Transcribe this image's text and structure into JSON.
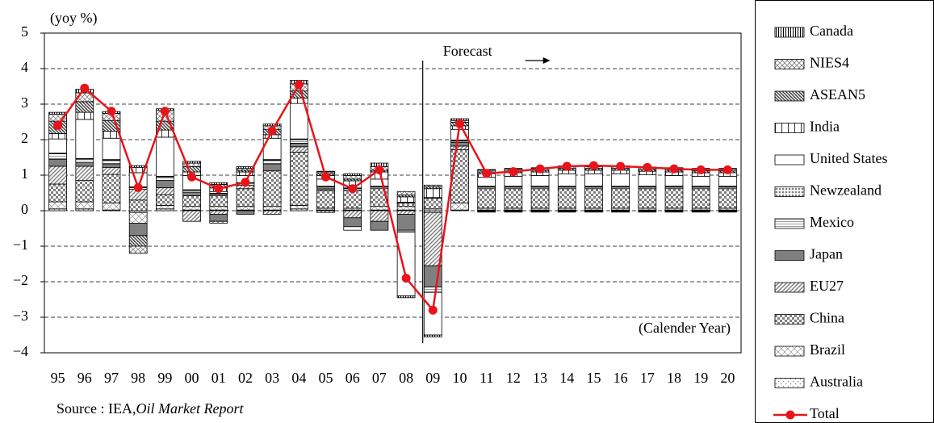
{
  "chart_data": {
    "type": "stacked-bar-line",
    "y_unit": "(yoy %)",
    "annotations": {
      "forecast": "Forecast",
      "period": "(Calender Year)"
    },
    "source": {
      "text": "Source : IEA,",
      "publication": "Oil Market Report"
    },
    "categories": [
      "95",
      "96",
      "97",
      "98",
      "99",
      "00",
      "01",
      "02",
      "03",
      "04",
      "05",
      "06",
      "07",
      "08",
      "09",
      "10",
      "11",
      "12",
      "13",
      "14",
      "15",
      "16",
      "17",
      "18",
      "19",
      "20"
    ],
    "ylim": [
      -4,
      5
    ],
    "yticks": [
      {
        "value": -4,
        "label": "−4"
      },
      {
        "value": -3,
        "label": "−3"
      },
      {
        "value": -2,
        "label": "−2"
      },
      {
        "value": -1,
        "label": "−1"
      },
      0,
      1,
      2,
      3,
      4,
      5
    ],
    "grid": true,
    "series": [
      {
        "name": "Canada",
        "color": "#000000",
        "values": [
          0.05,
          0.1,
          0.05,
          0.05,
          0.05,
          0.05,
          0.05,
          0.05,
          0.05,
          0.1,
          0.02,
          0.05,
          0.1,
          -0.05,
          -0.05,
          0.05,
          0.02,
          0.02,
          0.02,
          0.02,
          0.02,
          0.02,
          0.02,
          0.02,
          0.02,
          0.02
        ]
      },
      {
        "name": "NIES4",
        "color": "#808080",
        "values": [
          0.2,
          0.25,
          0.2,
          -0.2,
          0.3,
          0.1,
          -0.05,
          0.05,
          0.1,
          0.2,
          0.05,
          0.1,
          0.1,
          0.1,
          0.05,
          0.05,
          0.05,
          0.05,
          0.05,
          0.05,
          0.05,
          0.05,
          0.05,
          0.05,
          0.05,
          0.05
        ]
      },
      {
        "name": "ASEAN5",
        "color": "#404040",
        "values": [
          0.35,
          0.3,
          0.3,
          -0.3,
          0.25,
          0.15,
          0.1,
          0.05,
          0.15,
          0.2,
          0.05,
          0.05,
          0.05,
          0.05,
          0.05,
          0.1,
          0.05,
          0.05,
          0.05,
          0.05,
          0.05,
          0.05,
          0.05,
          0.05,
          0.05,
          0.05
        ]
      },
      {
        "name": "India",
        "color": "#000000",
        "values": [
          0.15,
          0.2,
          0.2,
          0.15,
          0.2,
          0.1,
          0.1,
          0.1,
          0.1,
          0.15,
          0.1,
          0.2,
          0.2,
          0.15,
          0.25,
          0.1,
          0.1,
          0.1,
          0.1,
          0.1,
          0.1,
          0.1,
          0.1,
          0.1,
          0.1,
          0.1
        ]
      },
      {
        "name": "United States",
        "color": "#ffffff",
        "values": [
          0.4,
          1.1,
          0.6,
          0.4,
          1.1,
          0.4,
          0.05,
          0.2,
          0.6,
          1.0,
          0.2,
          -0.1,
          0.2,
          -1.8,
          -1.2,
          0.3,
          0.25,
          0.28,
          0.3,
          0.35,
          0.35,
          0.35,
          0.32,
          0.3,
          0.28,
          0.28
        ]
      },
      {
        "name": "Newzealand",
        "color": "#808080",
        "values": [
          0.02,
          0.02,
          0.02,
          0.02,
          0.02,
          0.02,
          0.02,
          0.02,
          0.02,
          0.02,
          0.02,
          0.02,
          0.02,
          0.02,
          0.02,
          0.02,
          0.02,
          0.02,
          0.02,
          0.02,
          0.02,
          0.02,
          0.02,
          0.02,
          0.02,
          0.02
        ]
      },
      {
        "name": "Mexico",
        "color": "#808080",
        "values": [
          0.15,
          0.1,
          0.1,
          0.05,
          0.1,
          0.05,
          0.05,
          0.05,
          0.1,
          0.1,
          0.05,
          0.05,
          0.05,
          -0.05,
          -0.15,
          0.05,
          0.05,
          0.05,
          0.05,
          0.05,
          0.05,
          0.05,
          0.05,
          0.05,
          0.05,
          0.05
        ]
      },
      {
        "name": "Japan",
        "color": "#808080",
        "values": [
          0.2,
          0.1,
          0.1,
          -0.35,
          0.2,
          0.1,
          -0.2,
          -0.1,
          0.2,
          0.1,
          0.05,
          -0.25,
          -0.25,
          -0.45,
          -0.6,
          0.1,
          -0.02,
          -0.02,
          -0.02,
          -0.02,
          -0.02,
          -0.02,
          -0.02,
          -0.02,
          -0.02,
          -0.02
        ]
      },
      {
        "name": "EU27",
        "color": "#808080",
        "values": [
          0.5,
          0.4,
          0.2,
          0.3,
          0.2,
          -0.3,
          -0.1,
          0.1,
          -0.1,
          0.15,
          -0.05,
          -0.2,
          -0.3,
          -0.1,
          -1.5,
          0.1,
          -0.02,
          -0.02,
          -0.02,
          -0.02,
          -0.02,
          -0.02,
          -0.02,
          -0.02,
          -0.02,
          -0.02
        ]
      },
      {
        "name": "China",
        "color": "#808080",
        "values": [
          0.5,
          0.6,
          0.8,
          0.3,
          0.3,
          0.3,
          0.3,
          0.5,
          1.0,
          1.5,
          0.5,
          0.5,
          0.5,
          0.1,
          0.3,
          1.5,
          0.55,
          0.55,
          0.55,
          0.55,
          0.55,
          0.55,
          0.55,
          0.55,
          0.55,
          0.55
        ]
      },
      {
        "name": "Brazil",
        "color": "#808080",
        "values": [
          0.2,
          0.2,
          0.2,
          -0.3,
          0.1,
          0.1,
          0.1,
          0.1,
          0.1,
          0.1,
          0.05,
          0.05,
          0.1,
          0.1,
          0.05,
          0.2,
          0.05,
          0.05,
          0.05,
          0.05,
          0.05,
          0.05,
          0.05,
          0.05,
          0.05,
          0.05
        ]
      },
      {
        "name": "Australia",
        "color": "#808080",
        "values": [
          0.05,
          0.05,
          0.02,
          -0.05,
          0.05,
          0.02,
          0.02,
          0.02,
          0.02,
          0.05,
          0.02,
          0.02,
          0.02,
          0.02,
          -0.05,
          0.02,
          0.02,
          0.02,
          0.02,
          0.02,
          0.02,
          0.02,
          0.02,
          0.02,
          0.02,
          0.02
        ]
      },
      {
        "name": "Total",
        "color": "#e8141c",
        "values": [
          2.4,
          3.45,
          2.8,
          0.65,
          2.8,
          0.95,
          0.62,
          0.8,
          2.25,
          3.55,
          0.95,
          0.62,
          1.15,
          -1.9,
          -2.8,
          2.45,
          1.05,
          1.1,
          1.18,
          1.25,
          1.27,
          1.25,
          1.22,
          1.18,
          1.15,
          1.15
        ]
      }
    ]
  }
}
